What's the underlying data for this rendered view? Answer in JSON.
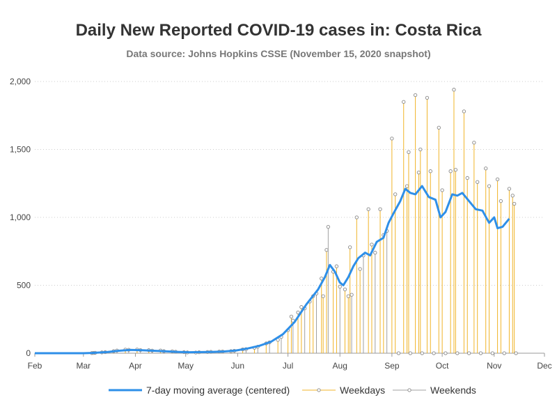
{
  "chart_data": {
    "type": "line",
    "title": "Daily New Reported COVID-19 cases in: Costa Rica",
    "subtitle": "Data source: Johns Hopkins CSSE (November 15, 2020 snapshot)",
    "xlabel": "",
    "ylabel": "",
    "x_ticks": [
      "Feb",
      "Mar",
      "Apr",
      "May",
      "Jun",
      "Jul",
      "Aug",
      "Sep",
      "Oct",
      "Nov",
      "Dec"
    ],
    "y_ticks": [
      "0",
      "500",
      "1,000",
      "1,500",
      "2,000"
    ],
    "xlim": [
      "2020-02-01",
      "2020-12-01"
    ],
    "ylim": [
      0,
      2000
    ],
    "grid": "horizontal-dotted",
    "legend_position": "bottom",
    "colors": {
      "average": "#2e8fe8",
      "weekdays": "#f0b428",
      "weekends": "#a0a0a0",
      "marker": "#888888",
      "grid": "#cccccc",
      "axis": "#999999"
    },
    "series": [
      {
        "name": "7-day moving average (centered)",
        "kind": "line",
        "points": [
          [
            "2020-02-01",
            0
          ],
          [
            "2020-03-01",
            0
          ],
          [
            "2020-03-06",
            2
          ],
          [
            "2020-03-15",
            8
          ],
          [
            "2020-03-22",
            18
          ],
          [
            "2020-03-29",
            24
          ],
          [
            "2020-04-05",
            22
          ],
          [
            "2020-04-12",
            18
          ],
          [
            "2020-04-19",
            14
          ],
          [
            "2020-04-26",
            10
          ],
          [
            "2020-05-03",
            7
          ],
          [
            "2020-05-10",
            8
          ],
          [
            "2020-05-17",
            10
          ],
          [
            "2020-05-24",
            13
          ],
          [
            "2020-05-31",
            20
          ],
          [
            "2020-06-07",
            35
          ],
          [
            "2020-06-14",
            55
          ],
          [
            "2020-06-21",
            85
          ],
          [
            "2020-06-28",
            140
          ],
          [
            "2020-07-05",
            230
          ],
          [
            "2020-07-12",
            360
          ],
          [
            "2020-07-19",
            470
          ],
          [
            "2020-07-23",
            560
          ],
          [
            "2020-07-26",
            650
          ],
          [
            "2020-07-29",
            600
          ],
          [
            "2020-08-01",
            520
          ],
          [
            "2020-08-03",
            500
          ],
          [
            "2020-08-06",
            560
          ],
          [
            "2020-08-09",
            640
          ],
          [
            "2020-08-12",
            700
          ],
          [
            "2020-08-16",
            740
          ],
          [
            "2020-08-19",
            720
          ],
          [
            "2020-08-23",
            820
          ],
          [
            "2020-08-27",
            850
          ],
          [
            "2020-08-30",
            960
          ],
          [
            "2020-09-02",
            1030
          ],
          [
            "2020-09-06",
            1120
          ],
          [
            "2020-09-09",
            1210
          ],
          [
            "2020-09-12",
            1180
          ],
          [
            "2020-09-15",
            1170
          ],
          [
            "2020-09-19",
            1230
          ],
          [
            "2020-09-23",
            1150
          ],
          [
            "2020-09-27",
            1130
          ],
          [
            "2020-09-30",
            1000
          ],
          [
            "2020-10-03",
            1040
          ],
          [
            "2020-10-07",
            1170
          ],
          [
            "2020-10-10",
            1160
          ],
          [
            "2020-10-13",
            1180
          ],
          [
            "2020-10-17",
            1120
          ],
          [
            "2020-10-21",
            1060
          ],
          [
            "2020-10-25",
            1050
          ],
          [
            "2020-10-29",
            960
          ],
          [
            "2020-11-01",
            1000
          ],
          [
            "2020-11-03",
            920
          ],
          [
            "2020-11-06",
            930
          ],
          [
            "2020-11-10",
            990
          ]
        ]
      },
      {
        "name": "Weekdays",
        "kind": "needle",
        "points": [
          [
            "2020-03-06",
            1
          ],
          [
            "2020-03-12",
            6
          ],
          [
            "2020-03-19",
            15
          ],
          [
            "2020-03-26",
            26
          ],
          [
            "2020-04-02",
            27
          ],
          [
            "2020-04-09",
            22
          ],
          [
            "2020-04-16",
            20
          ],
          [
            "2020-04-23",
            14
          ],
          [
            "2020-04-30",
            8
          ],
          [
            "2020-05-07",
            5
          ],
          [
            "2020-05-14",
            9
          ],
          [
            "2020-05-21",
            12
          ],
          [
            "2020-05-28",
            15
          ],
          [
            "2020-06-04",
            28
          ],
          [
            "2020-06-11",
            40
          ],
          [
            "2020-06-18",
            72
          ],
          [
            "2020-06-25",
            98
          ],
          [
            "2020-07-01",
            170
          ],
          [
            "2020-07-03",
            270
          ],
          [
            "2020-07-07",
            300
          ],
          [
            "2020-07-09",
            340
          ],
          [
            "2020-07-14",
            380
          ],
          [
            "2020-07-16",
            420
          ],
          [
            "2020-07-21",
            550
          ],
          [
            "2020-07-22",
            420
          ],
          [
            "2020-07-24",
            760
          ],
          [
            "2020-07-28",
            600
          ],
          [
            "2020-07-30",
            640
          ],
          [
            "2020-08-04",
            470
          ],
          [
            "2020-08-06",
            420
          ],
          [
            "2020-08-07",
            780
          ],
          [
            "2020-08-11",
            1000
          ],
          [
            "2020-08-13",
            620
          ],
          [
            "2020-08-18",
            1060
          ],
          [
            "2020-08-20",
            800
          ],
          [
            "2020-08-25",
            1060
          ],
          [
            "2020-08-27",
            870
          ],
          [
            "2020-09-01",
            1580
          ],
          [
            "2020-09-03",
            1170
          ],
          [
            "2020-09-08",
            1850
          ],
          [
            "2020-09-10",
            1230
          ],
          [
            "2020-09-11",
            1480
          ],
          [
            "2020-09-15",
            1900
          ],
          [
            "2020-09-17",
            1330
          ],
          [
            "2020-09-18",
            1500
          ],
          [
            "2020-09-22",
            1880
          ],
          [
            "2020-09-24",
            1340
          ],
          [
            "2020-09-29",
            1660
          ],
          [
            "2020-10-01",
            1200
          ],
          [
            "2020-10-06",
            1340
          ],
          [
            "2020-10-08",
            1940
          ],
          [
            "2020-10-09",
            1350
          ],
          [
            "2020-10-14",
            1780
          ],
          [
            "2020-10-16",
            1290
          ],
          [
            "2020-10-20",
            1550
          ],
          [
            "2020-10-22",
            1260
          ],
          [
            "2020-10-27",
            1360
          ],
          [
            "2020-10-29",
            1230
          ],
          [
            "2020-11-03",
            1280
          ],
          [
            "2020-11-05",
            1120
          ],
          [
            "2020-11-10",
            1210
          ],
          [
            "2020-11-12",
            1160
          ],
          [
            "2020-11-13",
            1100
          ]
        ]
      },
      {
        "name": "Weekends",
        "kind": "needle",
        "points": [
          [
            "2020-03-07",
            2
          ],
          [
            "2020-03-08",
            3
          ],
          [
            "2020-03-14",
            8
          ],
          [
            "2020-03-21",
            20
          ],
          [
            "2020-03-28",
            25
          ],
          [
            "2020-04-04",
            23
          ],
          [
            "2020-04-11",
            19
          ],
          [
            "2020-04-18",
            15
          ],
          [
            "2020-04-25",
            11
          ],
          [
            "2020-05-02",
            6
          ],
          [
            "2020-05-09",
            7
          ],
          [
            "2020-05-16",
            10
          ],
          [
            "2020-05-23",
            13
          ],
          [
            "2020-05-30",
            18
          ],
          [
            "2020-06-06",
            30
          ],
          [
            "2020-06-13",
            48
          ],
          [
            "2020-06-20",
            80
          ],
          [
            "2020-06-27",
            120
          ],
          [
            "2020-07-04",
            240
          ],
          [
            "2020-07-11",
            330
          ],
          [
            "2020-07-18",
            440
          ],
          [
            "2020-07-25",
            930
          ],
          [
            "2020-08-01",
            490
          ],
          [
            "2020-08-08",
            430
          ],
          [
            "2020-08-15",
            720
          ],
          [
            "2020-08-22",
            740
          ],
          [
            "2020-08-29",
            900
          ],
          [
            "2020-09-05",
            0
          ],
          [
            "2020-09-12",
            0
          ],
          [
            "2020-09-19",
            0
          ],
          [
            "2020-09-26",
            0
          ],
          [
            "2020-10-03",
            0
          ],
          [
            "2020-10-10",
            0
          ],
          [
            "2020-10-17",
            0
          ],
          [
            "2020-10-24",
            0
          ],
          [
            "2020-10-31",
            0
          ],
          [
            "2020-11-07",
            0
          ],
          [
            "2020-11-14",
            0
          ]
        ]
      }
    ]
  }
}
